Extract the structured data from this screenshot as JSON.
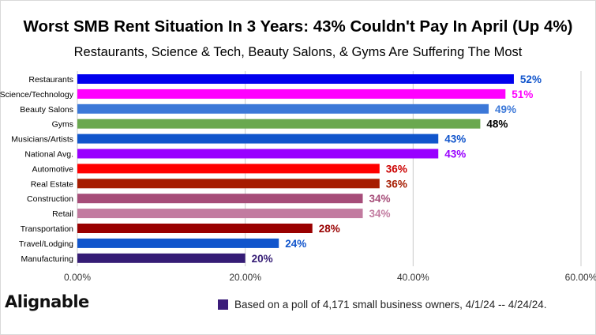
{
  "chart_data": {
    "type": "bar",
    "orientation": "horizontal",
    "title": "Worst SMB Rent Situation In 3 Years: 43% Couldn't Pay In April (Up 4%)",
    "subtitle": "Restaurants, Science & Tech, Beauty Salons, & Gyms Are Suffering The Most",
    "categories": [
      "Restaurants",
      "Science/Technology",
      "Beauty Salons",
      "Gyms",
      "Musicians/Artists",
      "National Avg.",
      "Automotive",
      "Real Estate",
      "Construction",
      "Retail",
      "Transportation",
      "Travel/Lodging",
      "Manufacturing"
    ],
    "values": [
      52,
      51,
      49,
      48,
      43,
      43,
      36,
      36,
      34,
      34,
      28,
      24,
      20
    ],
    "value_labels": [
      "52%",
      "51%",
      "49%",
      "48%",
      "43%",
      "43%",
      "36%",
      "36%",
      "34%",
      "34%",
      "28%",
      "24%",
      "20%"
    ],
    "bar_colors": [
      "#0000ee",
      "#ff00ff",
      "#3c78d8",
      "#6aa84f",
      "#1155cc",
      "#9900ff",
      "#ff0000",
      "#a61c00",
      "#a64d79",
      "#c27ba0",
      "#990000",
      "#1155cc",
      "#351c75"
    ],
    "label_colors": [
      "#1155cc",
      "#ff00ff",
      "#3c78d8",
      "#000000",
      "#1155cc",
      "#9900ff",
      "#cc0000",
      "#a61c00",
      "#a64d79",
      "#c27ba0",
      "#990000",
      "#1155cc",
      "#351c75"
    ],
    "x_ticks": [
      "0.00%",
      "20.00%",
      "40.00%",
      "60.00%"
    ],
    "x_tick_values": [
      0,
      20,
      40,
      60
    ],
    "xlim": [
      0,
      60
    ],
    "grid": "vertical",
    "xlabel": "",
    "ylabel": ""
  },
  "legend": {
    "text": "Based on a poll of 4,171 small business owners, 4/1/24 -- 4/24/24.",
    "color": "#3b1c7a"
  },
  "brand": {
    "logo_text": "Alignable"
  }
}
